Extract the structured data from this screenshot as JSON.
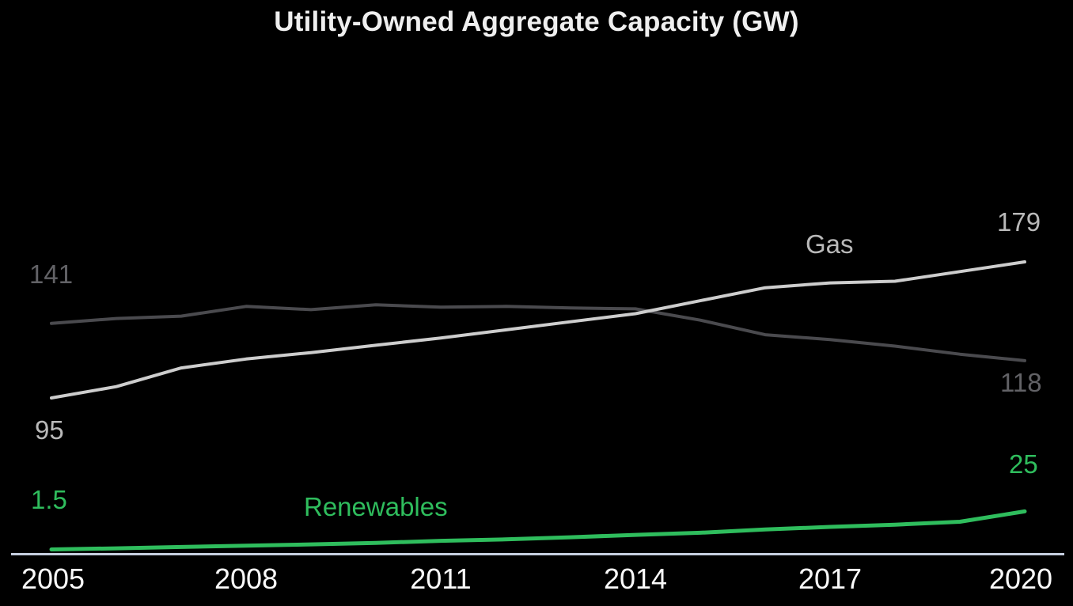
{
  "title": "Utility-Owned Aggregate Capacity (GW)",
  "colors": {
    "background": "#000000",
    "axis_line": "#c5cedf",
    "title_text": "#efefef",
    "tick_text": "#fafafa"
  },
  "x_axis": {
    "ticks": [
      "2005",
      "2008",
      "2011",
      "2014",
      "2017",
      "2020"
    ]
  },
  "chart_data": {
    "type": "line",
    "title": "Utility-Owned Aggregate Capacity (GW)",
    "unit": "GW",
    "xlim": [
      2005,
      2020
    ],
    "x_ticks": [
      2005,
      2008,
      2011,
      2014,
      2017,
      2020
    ],
    "grid": false,
    "y_axis_shown": false,
    "legend": "inline-labels",
    "x": [
      2005,
      2006,
      2007,
      2008,
      2009,
      2010,
      2011,
      2012,
      2013,
      2014,
      2015,
      2016,
      2017,
      2018,
      2019,
      2020
    ],
    "series": [
      {
        "id": "gas",
        "label": "Gas",
        "color": "#cdcdcd",
        "label_color": "#b9b9b9",
        "start_label": "95",
        "end_label": "179",
        "stroke_width": 4,
        "values": [
          95,
          102,
          113.5,
          119,
          123,
          127.5,
          132,
          137,
          142,
          147,
          155,
          163,
          166,
          167,
          173,
          179
        ]
      },
      {
        "id": "gray-unlabeled",
        "label": "",
        "color": "#4a4a4e",
        "label_color": "#626266",
        "start_label": "141",
        "end_label": "118",
        "stroke_width": 4,
        "values": [
          141,
          144,
          145.5,
          151.5,
          149.5,
          152.5,
          151,
          151.5,
          150.5,
          150,
          143,
          134,
          131,
          127,
          122,
          118
        ]
      },
      {
        "id": "renewables",
        "label": "Renewables",
        "color": "#2fbd5d",
        "label_color": "#2fbd5d",
        "start_label": "1.5",
        "end_label": "25",
        "stroke_width": 5,
        "values": [
          1.5,
          2.2,
          3,
          3.8,
          4.6,
          5.5,
          6.8,
          7.7,
          9,
          10.5,
          11.8,
          13.8,
          15.4,
          16.8,
          18.6,
          25
        ]
      }
    ]
  }
}
